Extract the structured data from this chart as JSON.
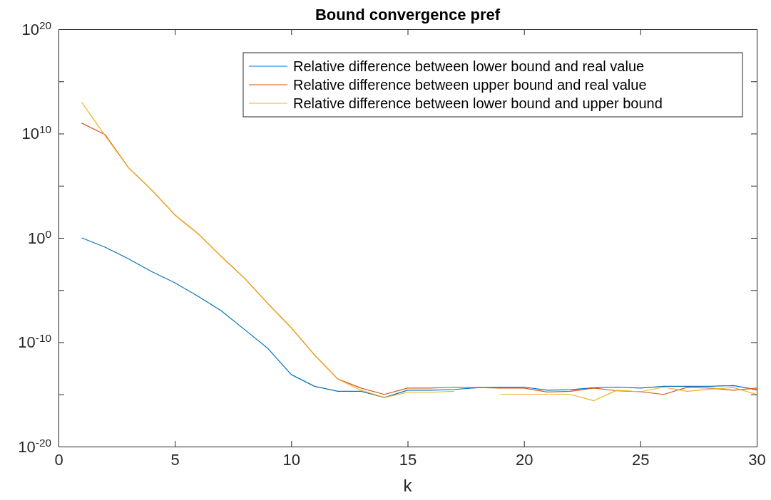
{
  "chart_data": {
    "type": "line",
    "title": "Bound convergence pref",
    "xlabel": "k",
    "x": [
      1,
      2,
      3,
      4,
      5,
      6,
      7,
      8,
      9,
      10,
      11,
      12,
      13,
      14,
      15,
      16,
      17,
      18,
      19,
      20,
      21,
      22,
      23,
      24,
      25,
      26,
      27,
      28,
      29,
      30
    ],
    "series": [
      {
        "name": "Relative difference between lower bound and real value",
        "color": "#0072bd",
        "values": [
          1,
          0.13,
          0.01,
          0.0006,
          5e-05,
          2.5e-06,
          1e-07,
          1.6e-09,
          2.5e-11,
          8e-14,
          6e-15,
          2e-15,
          2e-15,
          5e-16,
          2.5e-15,
          2.5e-15,
          3e-15,
          4.4e-15,
          5e-15,
          5e-15,
          2.5e-15,
          2.8e-15,
          4.4e-15,
          5e-15,
          4e-15,
          6e-15,
          6e-15,
          6e-15,
          7e-15,
          2.8e-15
        ]
      },
      {
        "name": "Relative difference between upper bound and real value",
        "color": "#d95319",
        "values": [
          100000000000.0,
          8000000000.0,
          5600000.0,
          40000.0,
          160.0,
          2.5,
          0.016,
          0.00013,
          5e-07,
          2.5e-09,
          6e-12,
          3e-14,
          4e-15,
          1e-15,
          4e-15,
          4e-15,
          5e-15,
          4.5e-15,
          4e-15,
          4e-15,
          1.7e-15,
          2e-15,
          4e-15,
          2.2e-15,
          1.8e-15,
          1e-15,
          4.7e-15,
          4e-15,
          2.5e-15,
          4e-15
        ]
      },
      {
        "name": "Relative difference between lower bound and upper bound",
        "color": "#edb120",
        "values": [
          10000000000000.0,
          6300000000.0,
          5600000.0,
          40000.0,
          160.0,
          2.5,
          0.016,
          0.00013,
          5e-07,
          2.5e-09,
          6e-12,
          3e-14,
          2.5e-15,
          5e-16,
          1.6e-15,
          1.6e-15,
          2e-15,
          null,
          1e-15,
          1e-15,
          1e-15,
          1e-15,
          2.5e-16,
          2.5e-15,
          1.8e-15,
          5e-15,
          2e-15,
          3.2e-15,
          4.5e-15,
          1e-15
        ]
      }
    ],
    "xlim": [
      0,
      30
    ],
    "xticks": [
      0,
      5,
      10,
      15,
      20,
      25,
      30
    ],
    "log": true,
    "ylim": [
      1e-20,
      1e+20
    ],
    "yticks": [
      {
        "value": 1e-20,
        "label": "10$^{-20}$"
      },
      {
        "value": 1e-15,
        "label": null
      },
      {
        "value": 1e-10,
        "label": "10$^{-10}$"
      },
      {
        "value": 1e-05,
        "label": null
      },
      {
        "value": 1,
        "label": "10$^{0}$"
      },
      {
        "value": 100000.0,
        "label": null
      },
      {
        "value": 10000000000.0,
        "label": "10$^{10}$"
      },
      {
        "value": 1000000000000000.0,
        "label": null
      },
      {
        "value": 1e+20,
        "label": "10$^{20}$"
      }
    ],
    "legend": "top right",
    "grid": false,
    "marker": "none",
    "line_style": "solid"
  }
}
